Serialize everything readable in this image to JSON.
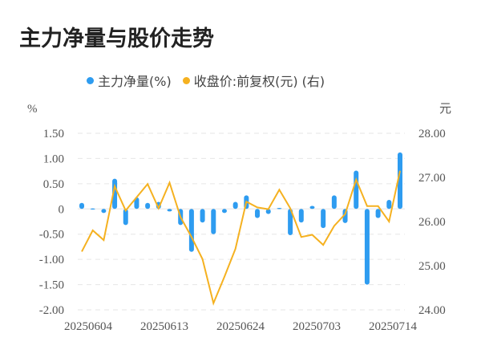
{
  "title": "主力净量与股价走势",
  "legend": [
    {
      "label": "主力净量(%)",
      "color": "#2e9cf0"
    },
    {
      "label": "收盘价:前复权(元) (右)",
      "color": "#f5b120"
    }
  ],
  "chart_data": {
    "type": "bar+line",
    "title": "主力净量与股价走势",
    "left_unit": "%",
    "right_unit": "元",
    "left_ticks": [
      "1.50",
      "1.00",
      "0.50",
      "0",
      "-0.50",
      "-1.00",
      "-1.50",
      "-2.00"
    ],
    "right_ticks": [
      "28.00",
      "27.00",
      "26.00",
      "25.00",
      "24.00"
    ],
    "ylim_left": [
      -2.0,
      1.5
    ],
    "ylim_right": [
      24,
      28
    ],
    "x_tick_labels": [
      "20250604",
      "20250613",
      "20250624",
      "20250703",
      "20250714"
    ],
    "series": [
      {
        "name": "主力净量(%)",
        "type": "bar",
        "axis": "left",
        "values": [
          0.12,
          0.01,
          -0.08,
          0.6,
          -0.32,
          0.23,
          0.12,
          0.14,
          -0.05,
          -0.32,
          -0.85,
          -0.27,
          -0.5,
          -0.08,
          0.14,
          0.27,
          -0.18,
          -0.1,
          0.02,
          -0.52,
          -0.27,
          0.06,
          -0.38,
          0.27,
          -0.28,
          0.76,
          -1.5,
          -0.18,
          0.18,
          1.12
        ]
      },
      {
        "name": "收盘价:前复权(元)",
        "type": "line",
        "axis": "right",
        "values": [
          25.32,
          25.8,
          25.58,
          26.8,
          26.25,
          26.55,
          26.85,
          26.3,
          26.88,
          26.1,
          25.65,
          25.15,
          24.15,
          24.75,
          25.38,
          26.45,
          26.32,
          26.28,
          26.72,
          26.3,
          25.65,
          25.7,
          25.47,
          25.9,
          26.17,
          26.95,
          26.35,
          26.35,
          26.0,
          27.15
        ]
      }
    ],
    "grid": true,
    "legend_position": "top"
  }
}
